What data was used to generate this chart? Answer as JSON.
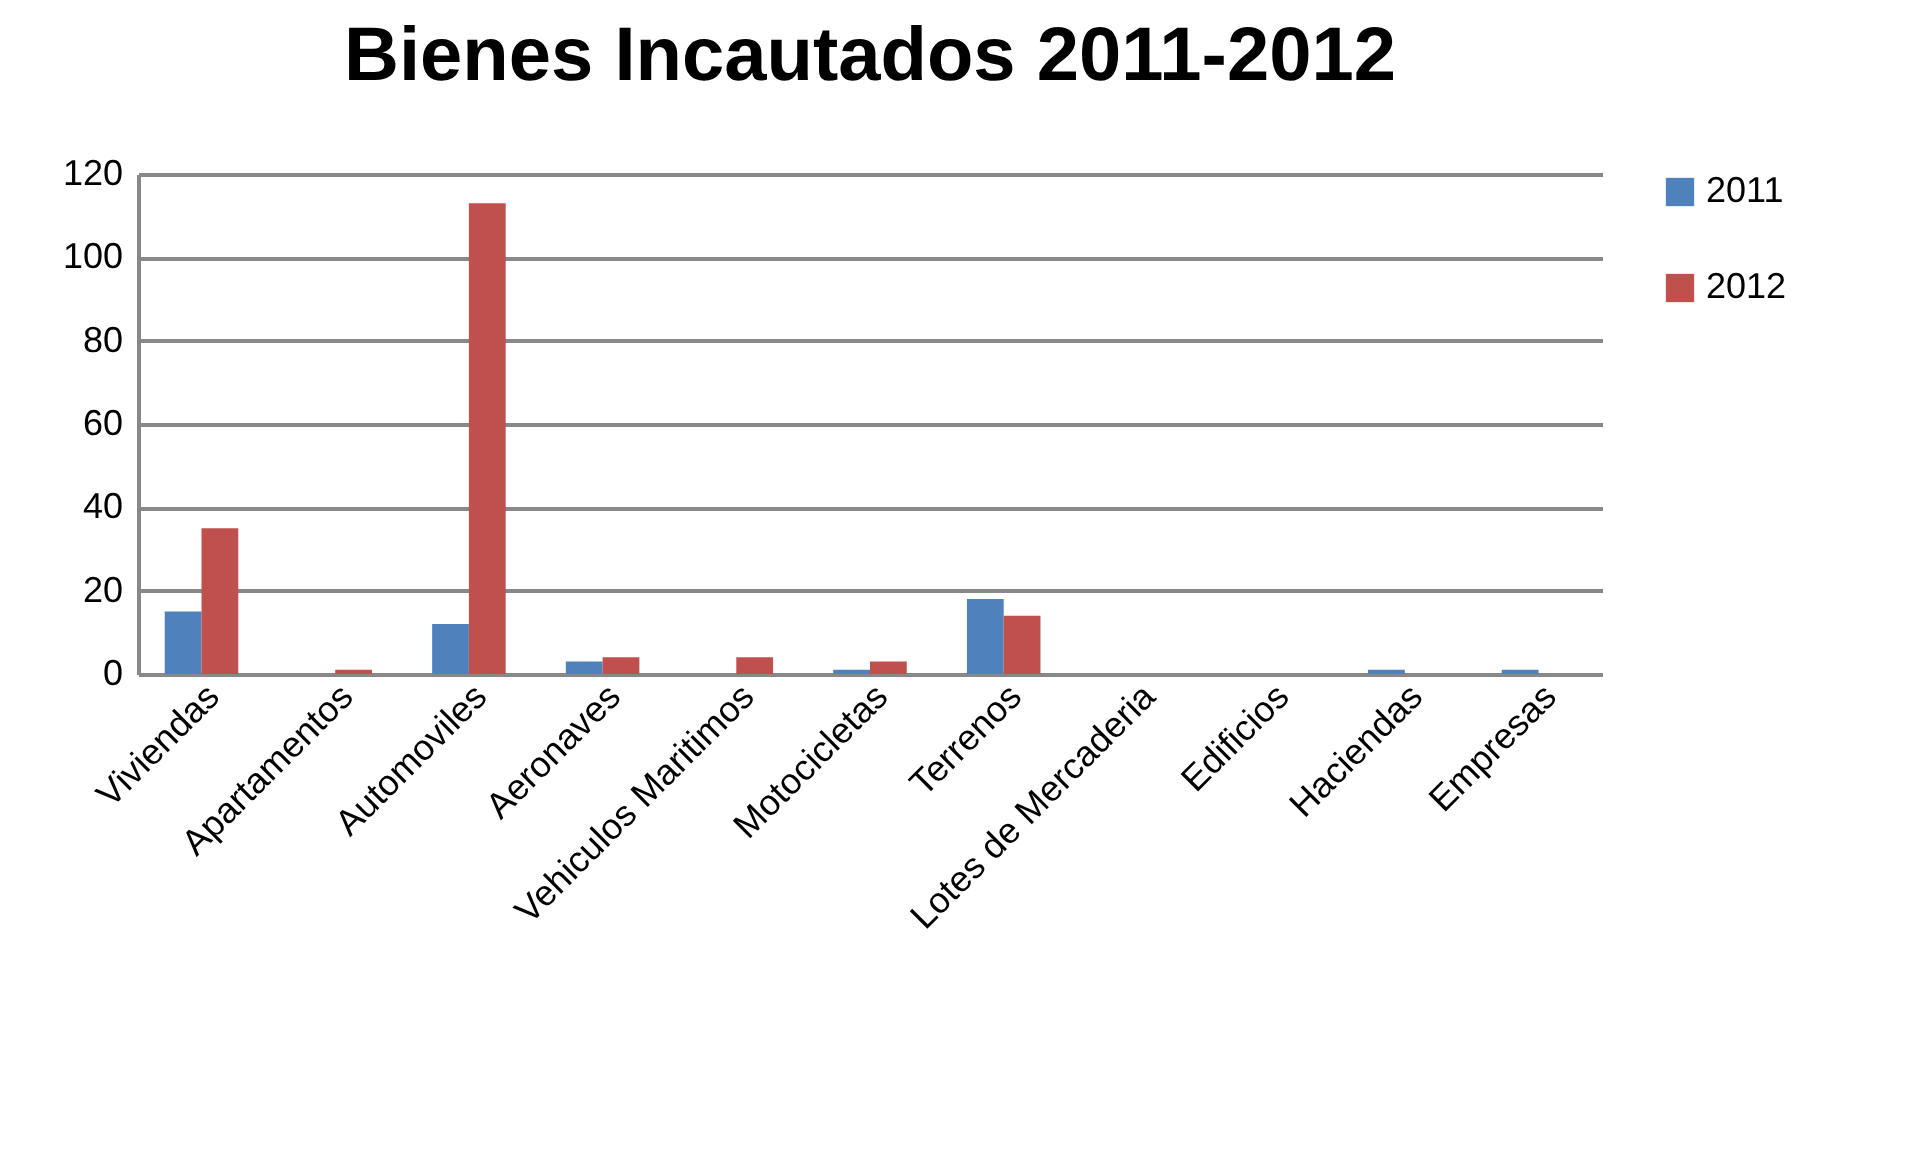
{
  "chart_data": {
    "type": "bar",
    "title": "Bienes Incautados 2011-2012",
    "categories": [
      "Viviendas",
      "Apartamentos",
      "Automoviles",
      "Aeronaves",
      "Vehiculos Maritimos",
      "Motocicletas",
      "Terrenos",
      "Lotes de Mercaderia",
      "Edificios",
      "Haciendas",
      "Empresas"
    ],
    "series": [
      {
        "name": "2011",
        "color": "#4f81bd",
        "values": [
          15,
          0,
          12,
          3,
          0,
          1,
          18,
          0,
          0,
          1,
          1
        ]
      },
      {
        "name": "2012",
        "color": "#c0504d",
        "values": [
          35,
          1,
          113,
          4,
          4,
          3,
          14,
          0,
          0,
          0,
          0
        ]
      }
    ],
    "ylim": [
      0,
      120
    ],
    "yticks": [
      0,
      20,
      40,
      60,
      80,
      100,
      120
    ],
    "grid": "y",
    "legend": "right"
  }
}
